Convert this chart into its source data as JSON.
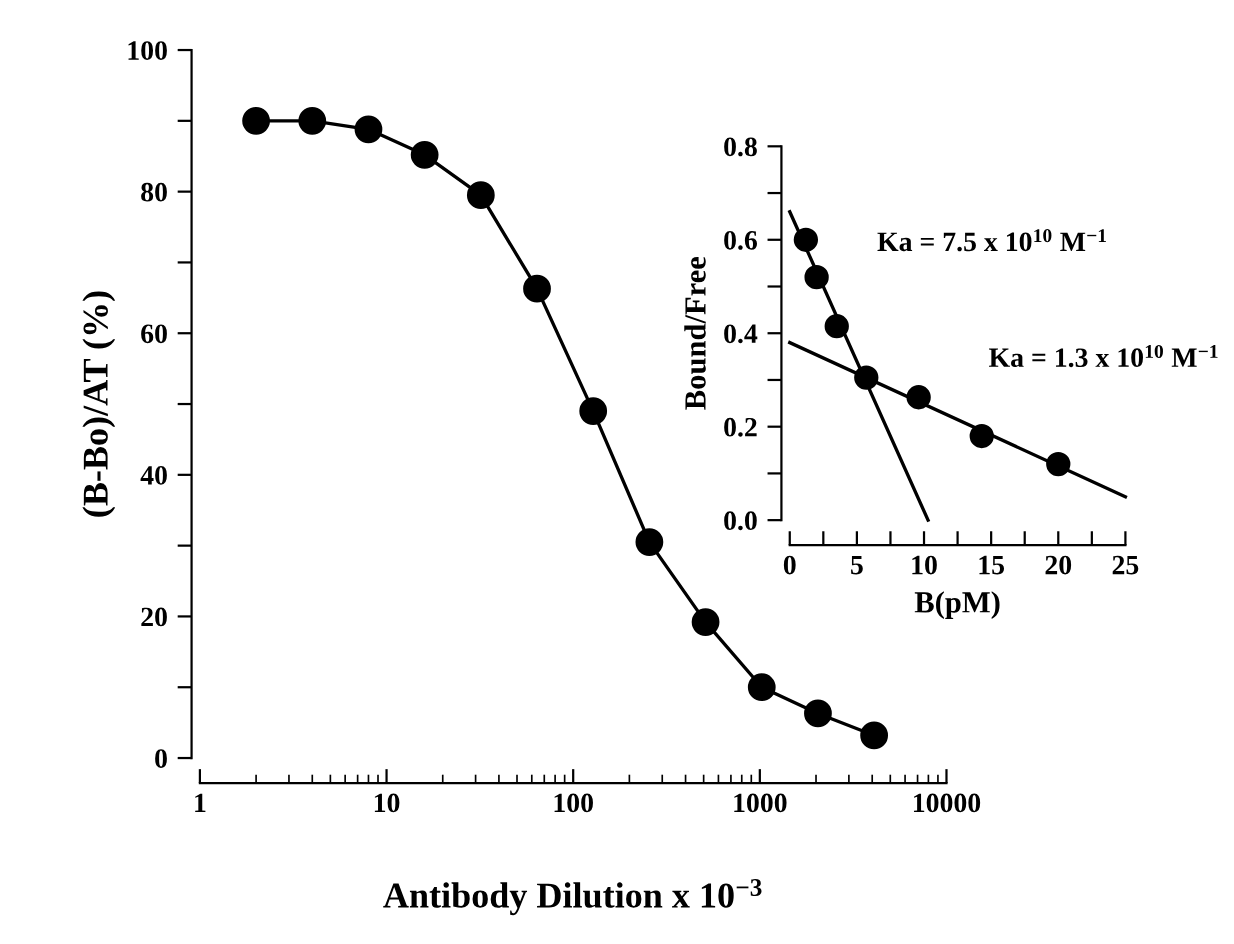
{
  "chart_data": [
    {
      "type": "line",
      "xlabel": "Antibody Dilution x 10$^{−3}$",
      "ylabel": "(B-Bo)/AT (%)",
      "log": "x",
      "marker": "circle",
      "line_style": "solid",
      "grid": false,
      "legend": false,
      "xlim": [
        1,
        10000
      ],
      "xticks": [
        1,
        10,
        100,
        1000,
        10000
      ],
      "ylim": [
        0,
        100
      ],
      "yticks": [
        0,
        {
          "value": 10,
          "label": null
        },
        20,
        {
          "value": 30,
          "label": null
        },
        40,
        {
          "value": 50,
          "label": null
        },
        60,
        {
          "value": 70,
          "label": null
        },
        80,
        {
          "value": 90,
          "label": null
        },
        100
      ],
      "x": [
        2,
        4,
        8,
        16,
        32,
        64,
        128,
        256,
        512,
        1024,
        2048,
        4096
      ],
      "series": [
        {
          "color": "#000000",
          "values": [
            90,
            90,
            88.8,
            85.2,
            79.5,
            66.3,
            49,
            30.5,
            19.2,
            10,
            6.3,
            3.2
          ]
        }
      ]
    },
    {
      "type": "scatter",
      "xlabel": "B(pM)",
      "ylabel": "Bound/Free",
      "marker": "circle",
      "grid": false,
      "legend": false,
      "xlim": [
        0,
        25
      ],
      "xticks": [
        0,
        {
          "value": 2.5,
          "label": null
        },
        5,
        {
          "value": 7.5,
          "label": null
        },
        10,
        {
          "value": 12.5,
          "label": null
        },
        15,
        {
          "value": 17.5,
          "label": null
        },
        20,
        {
          "value": 22.5,
          "label": null
        },
        25
      ],
      "ylim": [
        0,
        0.8
      ],
      "yticks": [
        {
          "value": 0,
          "label": "0.0"
        },
        {
          "value": 0.1,
          "label": null
        },
        {
          "value": 0.2,
          "label": "0.2"
        },
        {
          "value": 0.3,
          "label": null
        },
        {
          "value": 0.4,
          "label": "0.4"
        },
        {
          "value": 0.5,
          "label": null
        },
        {
          "value": 0.6,
          "label": "0.6"
        },
        {
          "value": 0.7,
          "label": null
        },
        {
          "value": 0.8,
          "label": "0.8"
        }
      ],
      "annotations": [
        "Ka = 7.5 x 10$^{10}$ M$^{−1}$",
        "Ka = 1.3 x 10$^{10}$ M$^{−1}$"
      ],
      "series": [
        {
          "type": "scatter",
          "color": "#000000",
          "x": [
            1.2,
            2,
            3.5,
            5.7,
            9.6,
            14.3,
            20
          ],
          "values": [
            0.6,
            0.52,
            0.415,
            0.305,
            0.263,
            0.18,
            0.12
          ]
        },
        {
          "type": "line",
          "color": "#000000",
          "marker": "none",
          "x": [
            0,
            10.3
          ],
          "values": [
            0.66,
            0
          ]
        },
        {
          "type": "line",
          "color": "#000000",
          "marker": "none",
          "x": [
            0,
            25
          ],
          "values": [
            0.38,
            0.05
          ]
        }
      ]
    }
  ]
}
